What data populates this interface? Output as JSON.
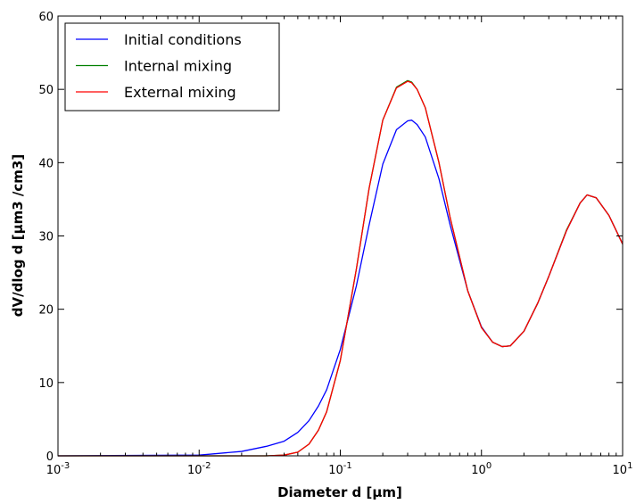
{
  "chart_data": {
    "type": "line",
    "title": "",
    "xlabel": "Diameter d [µm]",
    "ylabel": "dV/dlog d [µm3 /cm3]",
    "xscale": "log",
    "xlim": [
      0.001,
      10
    ],
    "ylim": [
      0,
      60
    ],
    "grid": false,
    "legend_position": "top-left",
    "x_ticks": [
      {
        "value": 0.001,
        "base": "10",
        "exp": "-3"
      },
      {
        "value": 0.01,
        "base": "10",
        "exp": "-2"
      },
      {
        "value": 0.1,
        "base": "10",
        "exp": "-1"
      },
      {
        "value": 1,
        "base": "10",
        "exp": "0"
      },
      {
        "value": 10,
        "base": "10",
        "exp": "1"
      }
    ],
    "y_ticks": [
      0,
      10,
      20,
      30,
      40,
      50,
      60
    ],
    "x": [
      0.001,
      0.01,
      0.02,
      0.03,
      0.04,
      0.05,
      0.06,
      0.07,
      0.08,
      0.1,
      0.13,
      0.16,
      0.2,
      0.25,
      0.3,
      0.32,
      0.35,
      0.4,
      0.5,
      0.6,
      0.8,
      1.0,
      1.2,
      1.4,
      1.6,
      2.0,
      2.5,
      3.0,
      4.0,
      5.0,
      5.6,
      6.5,
      8.0,
      10.0
    ],
    "series": [
      {
        "name": "Initial conditions",
        "color": "#0000ff",
        "values": [
          0,
          0.1,
          0.6,
          1.3,
          2.0,
          3.2,
          4.8,
          6.8,
          9.0,
          14.5,
          23.2,
          31.5,
          39.8,
          44.5,
          45.7,
          45.8,
          45.2,
          43.5,
          37.8,
          31.5,
          22.5,
          17.6,
          15.5,
          14.9,
          15.0,
          17.0,
          20.8,
          24.5,
          30.7,
          34.5,
          35.6,
          35.2,
          32.8,
          28.9
        ]
      },
      {
        "name": "Internal mixing",
        "color": "#008000",
        "values": [
          0,
          0,
          0,
          0,
          0.1,
          0.5,
          1.6,
          3.5,
          6.0,
          13.0,
          25.5,
          36.5,
          45.8,
          50.3,
          51.2,
          51.0,
          50.0,
          47.5,
          40.0,
          32.5,
          22.5,
          17.5,
          15.5,
          14.9,
          15.0,
          17.0,
          20.8,
          24.5,
          30.8,
          34.5,
          35.6,
          35.2,
          32.8,
          28.9
        ]
      },
      {
        "name": "External mixing",
        "color": "#ff0000",
        "values": [
          0,
          0,
          0,
          0,
          0.1,
          0.5,
          1.6,
          3.5,
          6.0,
          13.0,
          25.5,
          36.5,
          45.8,
          50.2,
          51.1,
          50.9,
          50.0,
          47.5,
          40.0,
          32.5,
          22.5,
          17.5,
          15.5,
          14.9,
          15.0,
          17.0,
          20.8,
          24.5,
          30.7,
          34.5,
          35.6,
          35.2,
          32.8,
          28.9
        ]
      }
    ]
  }
}
